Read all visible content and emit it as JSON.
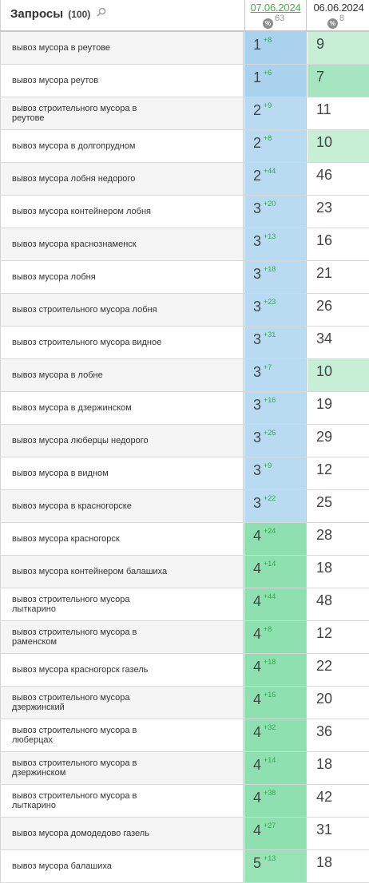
{
  "header": {
    "title": "Запросы",
    "count": "(100)",
    "date1": "07.06.2024",
    "date1_count": "63",
    "date2": "06.06.2024",
    "date2_count": "8",
    "percent_symbol": "%"
  },
  "colors": {
    "top3_dark": "#a8d2ee",
    "top3": "#b8dbf2",
    "top10": "#8fe0b0",
    "improved_light": "#c6efd6",
    "improved": "#a5e6c0",
    "change_positive": "#2ea84a",
    "date_link": "#4cae4c"
  },
  "rows": [
    {
      "query": "вывоз мусора в реутове",
      "pos1": "1",
      "chg1": "+8",
      "pos2": "9",
      "c1": "c-blue1",
      "c2": "c-lg1"
    },
    {
      "query": "вывоз мусора реутов",
      "pos1": "1",
      "chg1": "+6",
      "pos2": "7",
      "c1": "c-blue1",
      "c2": "c-lg2"
    },
    {
      "query": "вывоз строительного мусора в реутове",
      "pos1": "2",
      "chg1": "+9",
      "pos2": "11",
      "c1": "c-blue2",
      "c2": "c-white"
    },
    {
      "query": "вывоз мусора в долгопрудном",
      "pos1": "2",
      "chg1": "+8",
      "pos2": "10",
      "c1": "c-blue2",
      "c2": "c-lg1"
    },
    {
      "query": "вывоз мусора лобня недорого",
      "pos1": "2",
      "chg1": "+44",
      "pos2": "46",
      "c1": "c-blue2",
      "c2": "c-white"
    },
    {
      "query": "вывоз мусора контейнером лобня",
      "pos1": "3",
      "chg1": "+20",
      "pos2": "23",
      "c1": "c-blue2",
      "c2": "c-white"
    },
    {
      "query": "вывоз мусора краснознаменск",
      "pos1": "3",
      "chg1": "+13",
      "pos2": "16",
      "c1": "c-blue2",
      "c2": "c-white"
    },
    {
      "query": "вывоз мусора лобня",
      "pos1": "3",
      "chg1": "+18",
      "pos2": "21",
      "c1": "c-blue2",
      "c2": "c-white"
    },
    {
      "query": "вывоз строительного мусора лобня",
      "pos1": "3",
      "chg1": "+23",
      "pos2": "26",
      "c1": "c-blue2",
      "c2": "c-white"
    },
    {
      "query": "вывоз строительного мусора видное",
      "pos1": "3",
      "chg1": "+31",
      "pos2": "34",
      "c1": "c-blue2",
      "c2": "c-white"
    },
    {
      "query": "вывоз мусора в лобне",
      "pos1": "3",
      "chg1": "+7",
      "pos2": "10",
      "c1": "c-blue2",
      "c2": "c-lg1"
    },
    {
      "query": "вывоз мусора в дзержинском",
      "pos1": "3",
      "chg1": "+16",
      "pos2": "19",
      "c1": "c-blue2",
      "c2": "c-white"
    },
    {
      "query": "вывоз мусора люберцы недорого",
      "pos1": "3",
      "chg1": "+26",
      "pos2": "29",
      "c1": "c-blue2",
      "c2": "c-white"
    },
    {
      "query": "вывоз мусора в видном",
      "pos1": "3",
      "chg1": "+9",
      "pos2": "12",
      "c1": "c-blue2",
      "c2": "c-white"
    },
    {
      "query": "вывоз мусора в красногорске",
      "pos1": "3",
      "chg1": "+22",
      "pos2": "25",
      "c1": "c-blue2",
      "c2": "c-white"
    },
    {
      "query": "вывоз мусора красногорск",
      "pos1": "4",
      "chg1": "+24",
      "pos2": "28",
      "c1": "c-green",
      "c2": "c-white"
    },
    {
      "query": "вывоз мусора контейнером балашиха",
      "pos1": "4",
      "chg1": "+14",
      "pos2": "18",
      "c1": "c-green",
      "c2": "c-white"
    },
    {
      "query": "вывоз строительного мусора лыткарино",
      "pos1": "4",
      "chg1": "+44",
      "pos2": "48",
      "c1": "c-green",
      "c2": "c-white"
    },
    {
      "query": "вывоз строительного мусора в раменском",
      "pos1": "4",
      "chg1": "+8",
      "pos2": "12",
      "c1": "c-green",
      "c2": "c-white"
    },
    {
      "query": "вывоз мусора красногорск газель",
      "pos1": "4",
      "chg1": "+18",
      "pos2": "22",
      "c1": "c-green",
      "c2": "c-white"
    },
    {
      "query": "вывоз строительного мусора дзержинский",
      "pos1": "4",
      "chg1": "+16",
      "pos2": "20",
      "c1": "c-green",
      "c2": "c-white"
    },
    {
      "query": "вывоз строительного мусора в люберцах",
      "pos1": "4",
      "chg1": "+32",
      "pos2": "36",
      "c1": "c-green",
      "c2": "c-white"
    },
    {
      "query": "вывоз строительного мусора в дзержинском",
      "pos1": "4",
      "chg1": "+14",
      "pos2": "18",
      "c1": "c-green",
      "c2": "c-white"
    },
    {
      "query": "вывоз строительного мусора в лыткарино",
      "pos1": "4",
      "chg1": "+38",
      "pos2": "42",
      "c1": "c-green",
      "c2": "c-white"
    },
    {
      "query": "вывоз мусора домодедово газель",
      "pos1": "4",
      "chg1": "+27",
      "pos2": "31",
      "c1": "c-green",
      "c2": "c-white"
    },
    {
      "query": "вывоз мусора балашиха",
      "pos1": "5",
      "chg1": "+13",
      "pos2": "18",
      "c1": "c-green2",
      "c2": "c-white"
    }
  ]
}
